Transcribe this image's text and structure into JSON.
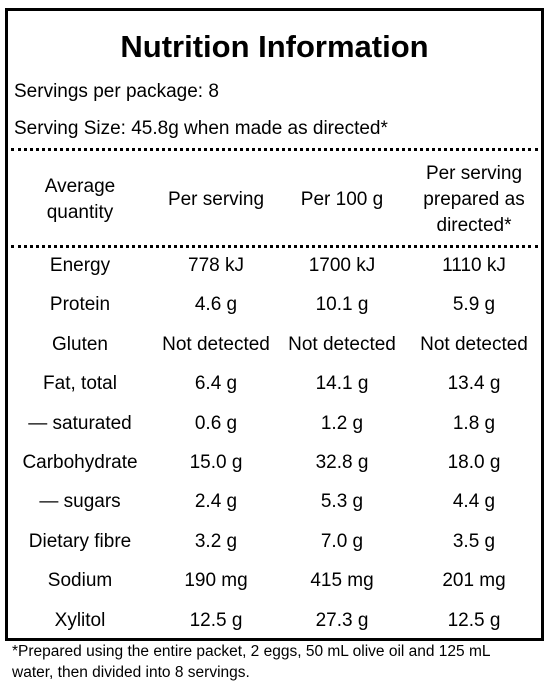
{
  "header": {
    "title": "Nutrition Information",
    "servings_per_package": "Servings per package: 8",
    "serving_size": "Serving Size: 45.8g when made as directed*"
  },
  "table": {
    "columns": [
      "Average quantity",
      "Per serving",
      "Per 100 g",
      "Per serving prepared as directed*"
    ],
    "rows": [
      [
        "Energy",
        "778 kJ",
        "1700 kJ",
        "1110 kJ"
      ],
      [
        "Protein",
        "4.6 g",
        "10.1 g",
        "5.9 g"
      ],
      [
        "Gluten",
        "Not detected",
        "Not detected",
        "Not detected"
      ],
      [
        "Fat, total",
        "6.4 g",
        "14.1 g",
        "13.4 g"
      ],
      [
        "— saturated",
        "0.6 g",
        "1.2 g",
        "1.8 g"
      ],
      [
        "Carbohydrate",
        "15.0 g",
        "32.8 g",
        "18.0 g"
      ],
      [
        "— sugars",
        "2.4 g",
        "5.3 g",
        "4.4 g"
      ],
      [
        "Dietary fibre",
        "3.2 g",
        "7.0 g",
        "3.5 g"
      ],
      [
        "Sodium",
        "190 mg",
        "415 mg",
        "201 mg"
      ],
      [
        "Xylitol",
        "12.5 g",
        "27.3 g",
        "12.5 g"
      ]
    ]
  },
  "footnote": "*Prepared using the entire packet, 2 eggs, 50 mL olive oil and 125 mL water, then divided into 8 servings."
}
